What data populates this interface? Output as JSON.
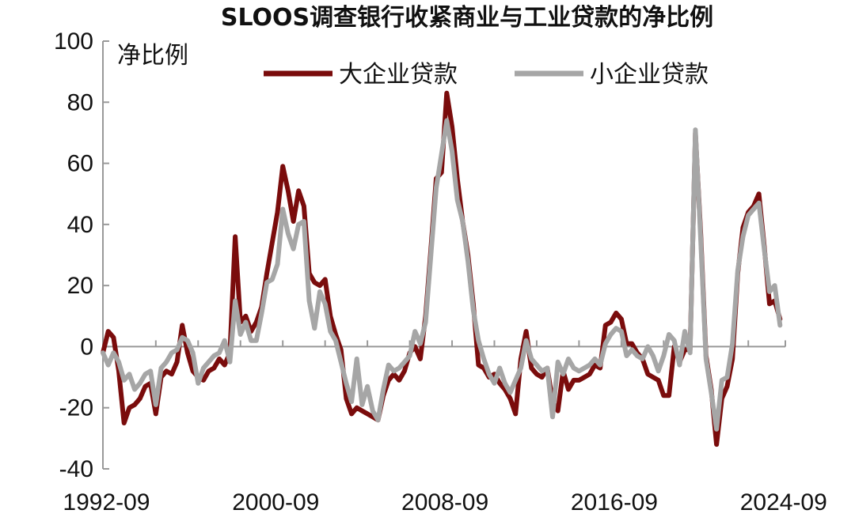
{
  "chart_data": {
    "type": "line",
    "title": "SLOOS调查银行收紧商业与工业贷款的净比例",
    "ylabel": "净比例",
    "ylim": [
      -40,
      100
    ],
    "yticks": [
      100,
      80,
      60,
      40,
      20,
      0,
      -20,
      -40
    ],
    "xticks": [
      "1992-09",
      "2000-09",
      "2008-09",
      "2016-09",
      "2024-09"
    ],
    "xlim": [
      "1992-07",
      "2024-10"
    ],
    "legend_position": "top-center",
    "grid": false,
    "colors": {
      "large": "#7a0c0c",
      "small": "#a6a6a6",
      "axis": "#999999"
    },
    "series": [
      {
        "name": "大企业贷款",
        "points": [
          [
            "1992-07",
            -2
          ],
          [
            "1992-10",
            5
          ],
          [
            "1993-01",
            3
          ],
          [
            "1993-04",
            -8
          ],
          [
            "1993-07",
            -25
          ],
          [
            "1993-10",
            -20
          ],
          [
            "1994-01",
            -19
          ],
          [
            "1994-04",
            -17
          ],
          [
            "1994-07",
            -13
          ],
          [
            "1994-10",
            -12
          ],
          [
            "1995-01",
            -22
          ],
          [
            "1995-04",
            -10
          ],
          [
            "1995-07",
            -8
          ],
          [
            "1995-10",
            -9
          ],
          [
            "1996-01",
            -5
          ],
          [
            "1996-04",
            7
          ],
          [
            "1996-07",
            -2
          ],
          [
            "1996-10",
            -8
          ],
          [
            "1997-01",
            -10
          ],
          [
            "1997-04",
            -11
          ],
          [
            "1997-07",
            -8
          ],
          [
            "1997-10",
            -7
          ],
          [
            "1998-01",
            -4
          ],
          [
            "1998-04",
            -6
          ],
          [
            "1998-07",
            -2
          ],
          [
            "1998-10",
            36
          ],
          [
            "1999-01",
            8
          ],
          [
            "1999-04",
            10
          ],
          [
            "1999-07",
            5
          ],
          [
            "1999-10",
            8
          ],
          [
            "2000-01",
            13
          ],
          [
            "2000-04",
            24
          ],
          [
            "2000-07",
            34
          ],
          [
            "2000-10",
            44
          ],
          [
            "2001-01",
            59
          ],
          [
            "2001-04",
            51
          ],
          [
            "2001-07",
            41
          ],
          [
            "2001-10",
            51
          ],
          [
            "2002-01",
            46
          ],
          [
            "2002-04",
            24
          ],
          [
            "2002-07",
            21
          ],
          [
            "2002-10",
            20
          ],
          [
            "2003-01",
            22
          ],
          [
            "2003-04",
            10
          ],
          [
            "2003-07",
            4
          ],
          [
            "2003-10",
            -1
          ],
          [
            "2004-01",
            -17
          ],
          [
            "2004-04",
            -22
          ],
          [
            "2004-07",
            -20
          ],
          [
            "2004-10",
            -21
          ],
          [
            "2005-01",
            -22
          ],
          [
            "2005-04",
            -23
          ],
          [
            "2005-07",
            -24
          ],
          [
            "2005-10",
            -16
          ],
          [
            "2006-01",
            -11
          ],
          [
            "2006-04",
            -9
          ],
          [
            "2006-07",
            -11
          ],
          [
            "2006-10",
            -8
          ],
          [
            "2007-01",
            -2
          ],
          [
            "2007-04",
            0
          ],
          [
            "2007-07",
            -4
          ],
          [
            "2007-10",
            10
          ],
          [
            "2008-01",
            32
          ],
          [
            "2008-04",
            55
          ],
          [
            "2008-07",
            57
          ],
          [
            "2008-10",
            83
          ],
          [
            "2009-01",
            72
          ],
          [
            "2009-04",
            55
          ],
          [
            "2009-07",
            41
          ],
          [
            "2009-10",
            30
          ],
          [
            "2010-01",
            14
          ],
          [
            "2010-04",
            -6
          ],
          [
            "2010-07",
            -7
          ],
          [
            "2010-10",
            -10
          ],
          [
            "2011-01",
            -9
          ],
          [
            "2011-04",
            -12
          ],
          [
            "2011-07",
            -14
          ],
          [
            "2011-10",
            -17
          ],
          [
            "2012-01",
            -22
          ],
          [
            "2012-04",
            -4
          ],
          [
            "2012-07",
            5
          ],
          [
            "2012-10",
            -7
          ],
          [
            "2013-01",
            -9
          ],
          [
            "2013-04",
            -10
          ],
          [
            "2013-07",
            -7
          ],
          [
            "2013-10",
            -18
          ],
          [
            "2014-01",
            -21
          ],
          [
            "2014-04",
            -8
          ],
          [
            "2014-07",
            -14
          ],
          [
            "2014-10",
            -11
          ],
          [
            "2015-01",
            -11
          ],
          [
            "2015-04",
            -10
          ],
          [
            "2015-07",
            -9
          ],
          [
            "2015-10",
            -6
          ],
          [
            "2016-01",
            -7
          ],
          [
            "2016-04",
            7
          ],
          [
            "2016-07",
            8
          ],
          [
            "2016-10",
            11
          ],
          [
            "2017-01",
            9
          ],
          [
            "2017-04",
            1
          ],
          [
            "2017-07",
            1
          ],
          [
            "2017-10",
            -2
          ],
          [
            "2018-01",
            -4
          ],
          [
            "2018-04",
            -9
          ],
          [
            "2018-07",
            -10
          ],
          [
            "2018-10",
            -11
          ],
          [
            "2019-01",
            -16
          ],
          [
            "2019-04",
            -16
          ],
          [
            "2019-07",
            0
          ],
          [
            "2019-10",
            -5
          ],
          [
            "2020-01",
            -1
          ],
          [
            "2020-04",
            -1
          ],
          [
            "2020-07",
            70
          ],
          [
            "2020-10",
            37
          ],
          [
            "2021-01",
            -3
          ],
          [
            "2021-04",
            -14
          ],
          [
            "2021-07",
            -32
          ],
          [
            "2021-10",
            -17
          ],
          [
            "2022-01",
            -13
          ],
          [
            "2022-04",
            -4
          ],
          [
            "2022-07",
            24
          ],
          [
            "2022-10",
            39
          ],
          [
            "2023-01",
            44
          ],
          [
            "2023-04",
            46
          ],
          [
            "2023-07",
            50
          ],
          [
            "2023-10",
            33
          ],
          [
            "2024-01",
            14
          ],
          [
            "2024-04",
            15
          ],
          [
            "2024-07",
            9
          ]
        ]
      },
      {
        "name": "小企业贷款",
        "points": [
          [
            "1992-07",
            -2
          ],
          [
            "1992-10",
            -6
          ],
          [
            "1993-01",
            -2
          ],
          [
            "1993-04",
            -5
          ],
          [
            "1993-07",
            -11
          ],
          [
            "1993-10",
            -9
          ],
          [
            "1994-01",
            -14
          ],
          [
            "1994-04",
            -12
          ],
          [
            "1994-07",
            -9
          ],
          [
            "1994-10",
            -8
          ],
          [
            "1995-01",
            -19
          ],
          [
            "1995-04",
            -7
          ],
          [
            "1995-07",
            -5
          ],
          [
            "1995-10",
            -2
          ],
          [
            "1996-01",
            -1
          ],
          [
            "1996-04",
            3
          ],
          [
            "1996-07",
            2
          ],
          [
            "1996-10",
            -2
          ],
          [
            "1997-01",
            -12
          ],
          [
            "1997-04",
            -7
          ],
          [
            "1997-07",
            -5
          ],
          [
            "1997-10",
            -3
          ],
          [
            "1998-01",
            -2
          ],
          [
            "1998-04",
            2
          ],
          [
            "1998-07",
            -5
          ],
          [
            "1998-10",
            15
          ],
          [
            "1999-01",
            4
          ],
          [
            "1999-04",
            8
          ],
          [
            "1999-07",
            2
          ],
          [
            "1999-10",
            2
          ],
          [
            "2000-01",
            11
          ],
          [
            "2000-04",
            21
          ],
          [
            "2000-07",
            22
          ],
          [
            "2000-10",
            27
          ],
          [
            "2001-01",
            45
          ],
          [
            "2001-04",
            37
          ],
          [
            "2001-07",
            32
          ],
          [
            "2001-10",
            40
          ],
          [
            "2002-01",
            41
          ],
          [
            "2002-04",
            15
          ],
          [
            "2002-07",
            6
          ],
          [
            "2002-10",
            18
          ],
          [
            "2003-01",
            14
          ],
          [
            "2003-04",
            5
          ],
          [
            "2003-07",
            2
          ],
          [
            "2003-10",
            -5
          ],
          [
            "2004-01",
            -12
          ],
          [
            "2004-04",
            -18
          ],
          [
            "2004-07",
            -4
          ],
          [
            "2004-10",
            -19
          ],
          [
            "2005-01",
            -13
          ],
          [
            "2005-04",
            -21
          ],
          [
            "2005-07",
            -24
          ],
          [
            "2005-10",
            -14
          ],
          [
            "2006-01",
            -6
          ],
          [
            "2006-04",
            -8
          ],
          [
            "2006-07",
            -7
          ],
          [
            "2006-10",
            -5
          ],
          [
            "2007-01",
            -3
          ],
          [
            "2007-04",
            5
          ],
          [
            "2007-07",
            1
          ],
          [
            "2007-10",
            8
          ],
          [
            "2008-01",
            30
          ],
          [
            "2008-04",
            52
          ],
          [
            "2008-07",
            63
          ],
          [
            "2008-10",
            74
          ],
          [
            "2009-01",
            64
          ],
          [
            "2009-04",
            48
          ],
          [
            "2009-07",
            41
          ],
          [
            "2009-10",
            28
          ],
          [
            "2010-01",
            12
          ],
          [
            "2010-04",
            2
          ],
          [
            "2010-07",
            -4
          ],
          [
            "2010-10",
            -9
          ],
          [
            "2011-01",
            -12
          ],
          [
            "2011-04",
            -7
          ],
          [
            "2011-07",
            -12
          ],
          [
            "2011-10",
            -15
          ],
          [
            "2012-01",
            -11
          ],
          [
            "2012-04",
            -7
          ],
          [
            "2012-07",
            2
          ],
          [
            "2012-10",
            -4
          ],
          [
            "2013-01",
            -6
          ],
          [
            "2013-04",
            -8
          ],
          [
            "2013-07",
            -7
          ],
          [
            "2013-10",
            -23
          ],
          [
            "2014-01",
            -5
          ],
          [
            "2014-04",
            -9
          ],
          [
            "2014-07",
            -4
          ],
          [
            "2014-10",
            -7
          ],
          [
            "2015-01",
            -8
          ],
          [
            "2015-04",
            -7
          ],
          [
            "2015-07",
            -6
          ],
          [
            "2015-10",
            -4
          ],
          [
            "2016-01",
            -6
          ],
          [
            "2016-04",
            1
          ],
          [
            "2016-07",
            4
          ],
          [
            "2016-10",
            6
          ],
          [
            "2017-01",
            5
          ],
          [
            "2017-04",
            -3
          ],
          [
            "2017-07",
            -1
          ],
          [
            "2017-10",
            -3
          ],
          [
            "2018-01",
            -4
          ],
          [
            "2018-04",
            0
          ],
          [
            "2018-07",
            -3
          ],
          [
            "2018-10",
            -8
          ],
          [
            "2019-01",
            -3
          ],
          [
            "2019-04",
            4
          ],
          [
            "2019-07",
            2
          ],
          [
            "2019-10",
            -6
          ],
          [
            "2020-01",
            5
          ],
          [
            "2020-04",
            -2
          ],
          [
            "2020-07",
            71
          ],
          [
            "2020-10",
            35
          ],
          [
            "2021-01",
            -4
          ],
          [
            "2021-04",
            -15
          ],
          [
            "2021-07",
            -27
          ],
          [
            "2021-10",
            -11
          ],
          [
            "2022-01",
            -10
          ],
          [
            "2022-04",
            1
          ],
          [
            "2022-07",
            25
          ],
          [
            "2022-10",
            36
          ],
          [
            "2023-01",
            43
          ],
          [
            "2023-04",
            45
          ],
          [
            "2023-07",
            47
          ],
          [
            "2023-10",
            32
          ],
          [
            "2024-01",
            18
          ],
          [
            "2024-04",
            20
          ],
          [
            "2024-07",
            7
          ]
        ]
      }
    ]
  }
}
